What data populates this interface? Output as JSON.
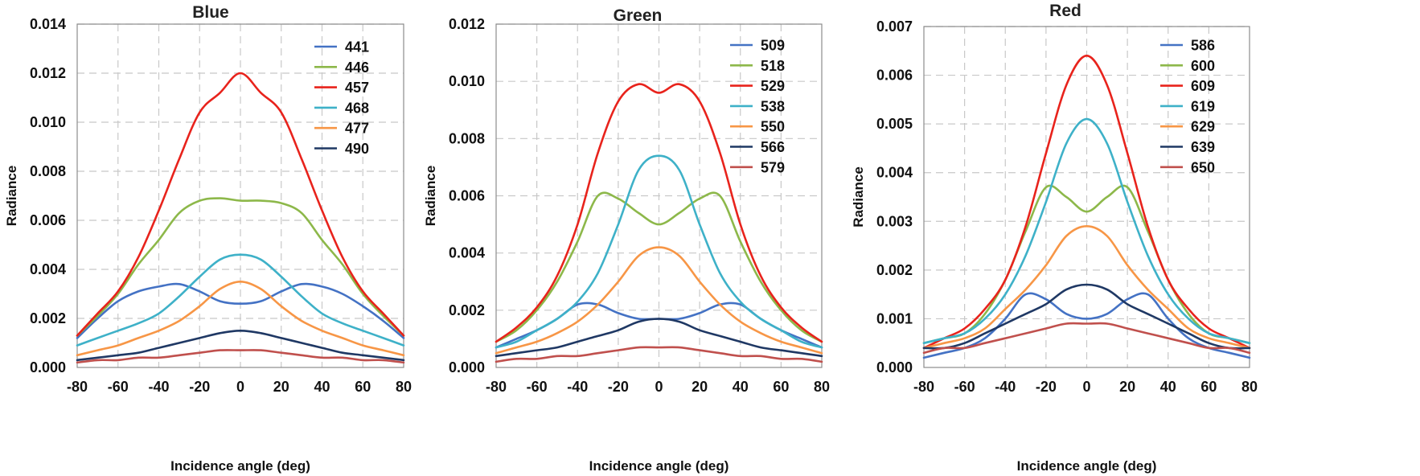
{
  "chart_data": [
    {
      "type": "line",
      "title": "Blue",
      "xlabel": "Incidence angle (deg)",
      "ylabel": "Radiance",
      "xlim": [
        -80,
        80
      ],
      "ylim": [
        0,
        0.014
      ],
      "xticks": [
        -80,
        -60,
        -40,
        -20,
        0,
        20,
        40,
        60,
        80
      ],
      "yticks": [
        0.0,
        0.002,
        0.004,
        0.006,
        0.008,
        0.01,
        0.012,
        0.014
      ],
      "ytick_labels": [
        "0.000",
        "0.002",
        "0.004",
        "0.006",
        "0.008",
        "0.010",
        "0.012",
        "0.014"
      ],
      "grid": true,
      "legend_position": "top-right",
      "x": [
        -80,
        -70,
        -60,
        -50,
        -40,
        -30,
        -20,
        -10,
        0,
        10,
        20,
        30,
        40,
        50,
        60,
        70,
        80
      ],
      "series": [
        {
          "name": "441",
          "color": "#4472C4",
          "values": [
            0.0012,
            0.002,
            0.0027,
            0.0031,
            0.0033,
            0.0034,
            0.0031,
            0.0027,
            0.0026,
            0.0027,
            0.0031,
            0.0034,
            0.0033,
            0.003,
            0.0025,
            0.0019,
            0.0012
          ]
        },
        {
          "name": "446",
          "color": "#8DB84A",
          "values": [
            0.0013,
            0.0021,
            0.003,
            0.0042,
            0.0052,
            0.0063,
            0.0068,
            0.0069,
            0.0068,
            0.0068,
            0.0067,
            0.0063,
            0.0052,
            0.0042,
            0.003,
            0.0021,
            0.0013
          ]
        },
        {
          "name": "457",
          "color": "#E8231C",
          "values": [
            0.0013,
            0.0022,
            0.0031,
            0.0045,
            0.0064,
            0.0085,
            0.0104,
            0.0112,
            0.012,
            0.0112,
            0.0104,
            0.0085,
            0.0064,
            0.0045,
            0.0031,
            0.0022,
            0.0013
          ]
        },
        {
          "name": "468",
          "color": "#3EB1C8",
          "values": [
            0.0009,
            0.0012,
            0.0015,
            0.0018,
            0.0022,
            0.0029,
            0.0037,
            0.0044,
            0.0046,
            0.0044,
            0.0037,
            0.0029,
            0.0022,
            0.0018,
            0.0015,
            0.0012,
            0.0009
          ]
        },
        {
          "name": "477",
          "color": "#F79646",
          "values": [
            0.0005,
            0.0007,
            0.0009,
            0.0012,
            0.0015,
            0.0019,
            0.0025,
            0.0032,
            0.0035,
            0.0032,
            0.0025,
            0.0019,
            0.0015,
            0.0012,
            0.0009,
            0.0007,
            0.0005
          ]
        },
        {
          "name": "490",
          "color": "#1F3864",
          "values": [
            0.0003,
            0.0004,
            0.0005,
            0.0006,
            0.0008,
            0.001,
            0.0012,
            0.0014,
            0.0015,
            0.0014,
            0.0012,
            0.001,
            0.0008,
            0.0006,
            0.0005,
            0.0004,
            0.0003
          ]
        },
        {
          "name": "",
          "color": "#C0504D",
          "values": [
            0.0002,
            0.0003,
            0.0003,
            0.0004,
            0.0004,
            0.0005,
            0.0006,
            0.0007,
            0.0007,
            0.0007,
            0.0006,
            0.0005,
            0.0004,
            0.0004,
            0.0003,
            0.0003,
            0.0002
          ]
        }
      ]
    },
    {
      "type": "line",
      "title": "Green",
      "xlabel": "Incidence angle (deg)",
      "ylabel": "Radiance",
      "xlim": [
        -80,
        80
      ],
      "ylim": [
        0,
        0.012
      ],
      "xticks": [
        -80,
        -60,
        -40,
        -20,
        0,
        20,
        40,
        60,
        80
      ],
      "yticks": [
        0.0,
        0.002,
        0.004,
        0.006,
        0.008,
        0.01,
        0.012
      ],
      "ytick_labels": [
        "0.000",
        "0.002",
        "0.004",
        "0.006",
        "0.008",
        "0.010",
        "0.012"
      ],
      "grid": true,
      "legend_position": "top-right",
      "x": [
        -80,
        -70,
        -60,
        -50,
        -40,
        -30,
        -20,
        -10,
        0,
        10,
        20,
        30,
        40,
        50,
        60,
        70,
        80
      ],
      "series": [
        {
          "name": "509",
          "color": "#4472C4",
          "values": [
            0.0007,
            0.001,
            0.0013,
            0.0017,
            0.0022,
            0.0022,
            0.0019,
            0.0017,
            0.0017,
            0.0017,
            0.0019,
            0.0022,
            0.0022,
            0.0017,
            0.0013,
            0.001,
            0.0007
          ]
        },
        {
          "name": "518",
          "color": "#8DB84A",
          "values": [
            0.0009,
            0.0013,
            0.002,
            0.003,
            0.0044,
            0.006,
            0.0059,
            0.0054,
            0.005,
            0.0054,
            0.0059,
            0.006,
            0.0044,
            0.003,
            0.002,
            0.0013,
            0.0009
          ]
        },
        {
          "name": "529",
          "color": "#E8231C",
          "values": [
            0.0009,
            0.0014,
            0.0021,
            0.0032,
            0.005,
            0.0075,
            0.0093,
            0.0099,
            0.0096,
            0.0099,
            0.0093,
            0.0075,
            0.005,
            0.0032,
            0.0021,
            0.0014,
            0.0009
          ]
        },
        {
          "name": "538",
          "color": "#3EB1C8",
          "values": [
            0.0007,
            0.0009,
            0.0013,
            0.0017,
            0.0023,
            0.0033,
            0.005,
            0.0069,
            0.0074,
            0.0069,
            0.005,
            0.0033,
            0.0023,
            0.0017,
            0.0013,
            0.0009,
            0.0007
          ]
        },
        {
          "name": "550",
          "color": "#F79646",
          "values": [
            0.0005,
            0.0007,
            0.0009,
            0.0012,
            0.0016,
            0.0022,
            0.003,
            0.0039,
            0.0042,
            0.0039,
            0.003,
            0.0022,
            0.0016,
            0.0012,
            0.0009,
            0.0007,
            0.0005
          ]
        },
        {
          "name": "566",
          "color": "#1F3864",
          "values": [
            0.0004,
            0.0005,
            0.0006,
            0.0007,
            0.0009,
            0.0011,
            0.0013,
            0.0016,
            0.0017,
            0.0016,
            0.0013,
            0.0011,
            0.0009,
            0.0007,
            0.0006,
            0.0005,
            0.0004
          ]
        },
        {
          "name": "579",
          "color": "#C0504D",
          "values": [
            0.0002,
            0.0003,
            0.0003,
            0.0004,
            0.0004,
            0.0005,
            0.0006,
            0.0007,
            0.0007,
            0.0007,
            0.0006,
            0.0005,
            0.0004,
            0.0004,
            0.0003,
            0.0003,
            0.0002
          ]
        }
      ]
    },
    {
      "type": "line",
      "title": "Red",
      "xlabel": "Incidence angle (deg)",
      "ylabel": "Radiance",
      "xlim": [
        -80,
        80
      ],
      "ylim": [
        0,
        0.007
      ],
      "xticks": [
        -80,
        -60,
        -40,
        -20,
        0,
        20,
        40,
        60,
        80
      ],
      "yticks": [
        0.0,
        0.001,
        0.002,
        0.003,
        0.004,
        0.005,
        0.006,
        0.007
      ],
      "ytick_labels": [
        "0.000",
        "0.001",
        "0.002",
        "0.003",
        "0.004",
        "0.005",
        "0.006",
        "0.007"
      ],
      "grid": true,
      "legend_position": "top-right",
      "x": [
        -80,
        -70,
        -60,
        -50,
        -40,
        -30,
        -20,
        -10,
        0,
        10,
        20,
        30,
        40,
        50,
        60,
        70,
        80
      ],
      "series": [
        {
          "name": "586",
          "color": "#4472C4",
          "values": [
            0.0002,
            0.0003,
            0.0004,
            0.0006,
            0.001,
            0.0015,
            0.0014,
            0.0011,
            0.001,
            0.0011,
            0.0014,
            0.0015,
            0.001,
            0.0006,
            0.0004,
            0.0003,
            0.0002
          ]
        },
        {
          "name": "600",
          "color": "#8DB84A",
          "values": [
            0.0005,
            0.0006,
            0.0007,
            0.0011,
            0.0018,
            0.0028,
            0.0037,
            0.0035,
            0.0032,
            0.0035,
            0.0037,
            0.0028,
            0.0018,
            0.0011,
            0.0007,
            0.0006,
            0.0005
          ]
        },
        {
          "name": "609",
          "color": "#E8231C",
          "values": [
            0.0004,
            0.0006,
            0.0008,
            0.0012,
            0.0018,
            0.0029,
            0.0044,
            0.0058,
            0.0064,
            0.0058,
            0.0044,
            0.0029,
            0.0018,
            0.0012,
            0.0008,
            0.0006,
            0.0004
          ]
        },
        {
          "name": "619",
          "color": "#3EB1C8",
          "values": [
            0.0005,
            0.0006,
            0.0007,
            0.001,
            0.0015,
            0.0023,
            0.0034,
            0.0046,
            0.0051,
            0.0046,
            0.0034,
            0.0023,
            0.0015,
            0.001,
            0.0007,
            0.0006,
            0.0005
          ]
        },
        {
          "name": "629",
          "color": "#F79646",
          "values": [
            0.0004,
            0.0005,
            0.0006,
            0.0008,
            0.0012,
            0.0016,
            0.0021,
            0.0027,
            0.0029,
            0.0027,
            0.0021,
            0.0016,
            0.0012,
            0.0008,
            0.0006,
            0.0005,
            0.0004
          ]
        },
        {
          "name": "639",
          "color": "#1F3864",
          "values": [
            0.0004,
            0.0004,
            0.0005,
            0.0007,
            0.0009,
            0.0011,
            0.0013,
            0.0016,
            0.0017,
            0.0016,
            0.0013,
            0.0011,
            0.0009,
            0.0007,
            0.0005,
            0.0004,
            0.0004
          ]
        },
        {
          "name": "650",
          "color": "#C0504D",
          "values": [
            0.0003,
            0.0004,
            0.0004,
            0.0005,
            0.0006,
            0.0007,
            0.0008,
            0.0009,
            0.0009,
            0.0009,
            0.0008,
            0.0007,
            0.0006,
            0.0005,
            0.0004,
            0.0004,
            0.0003
          ]
        }
      ]
    }
  ]
}
